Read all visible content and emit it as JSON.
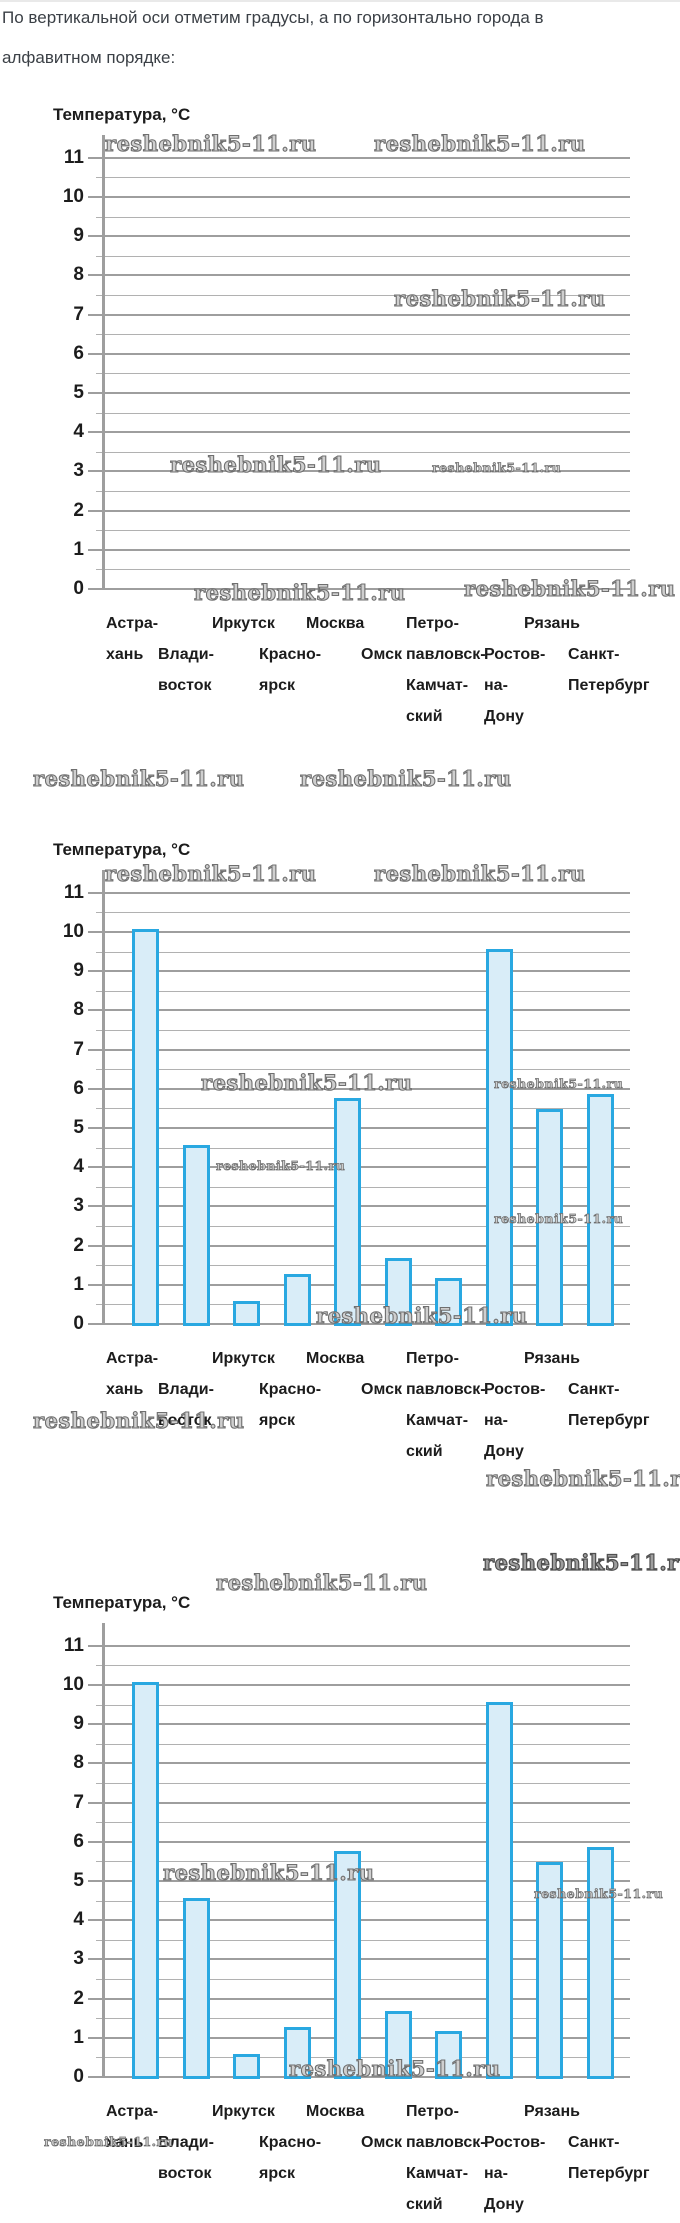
{
  "watermark": "reshebnik5-11.ru",
  "intro": {
    "line1": "По вертикальной оси отметим градусы, а по горизонтально города в",
    "line2": "алфавитном порядке:"
  },
  "axis": {
    "title": "Температура, °C",
    "y_ticks": [
      0,
      1,
      2,
      3,
      4,
      5,
      6,
      7,
      8,
      9,
      10,
      11
    ]
  },
  "city_labels": [
    {
      "lines": [
        "Астра-",
        "хань"
      ],
      "row": 0
    },
    {
      "lines": [
        "Влади-",
        "восток"
      ],
      "row": 1
    },
    {
      "lines": [
        "Иркутск"
      ],
      "row": 0
    },
    {
      "lines": [
        "Красно-",
        "ярск"
      ],
      "row": 1
    },
    {
      "lines": [
        "Москва"
      ],
      "row": 0
    },
    {
      "lines": [
        "Омск"
      ],
      "row": 1
    },
    {
      "lines": [
        "Петро-",
        "павловск-",
        "Камчат-",
        "ский"
      ],
      "row": 0
    },
    {
      "lines": [
        "Ростов-",
        "на-",
        "Дону"
      ],
      "row": 1
    },
    {
      "lines": [
        "Рязань"
      ],
      "row": 0
    },
    {
      "lines": [
        "Санкт-",
        "Петербург"
      ],
      "row": 1
    }
  ],
  "chart_data": [
    {
      "type": "bar",
      "title": "Температура, °C",
      "categories": [
        "Астрахань",
        "Владивосток",
        "Иркутск",
        "Красноярск",
        "Москва",
        "Омск",
        "Петропавловск-Камчатский",
        "Ростов-на-Дону",
        "Рязань",
        "Санкт-Петербург"
      ],
      "values": [],
      "ylim": [
        0,
        11.5
      ],
      "yticks": [
        0,
        1,
        2,
        3,
        4,
        5,
        6,
        7,
        8,
        9,
        10,
        11
      ],
      "grid": "horizontal lines every 0.5",
      "legend": "none",
      "note": "empty coordinate grid without bars"
    },
    {
      "type": "bar",
      "title": "Температура, °C",
      "categories": [
        "Астрахань",
        "Владивосток",
        "Иркутск",
        "Красноярск",
        "Москва",
        "Омск",
        "Петропавловск-Камчатский",
        "Ростов-на-Дону",
        "Рязань",
        "Санкт-Петербург"
      ],
      "values": [
        10.1,
        4.6,
        0.6,
        1.3,
        5.8,
        1.7,
        1.2,
        9.6,
        5.5,
        5.9
      ],
      "ylim": [
        0,
        11.5
      ],
      "yticks": [
        0,
        1,
        2,
        3,
        4,
        5,
        6,
        7,
        8,
        9,
        10,
        11
      ],
      "grid": "horizontal lines every 0.5",
      "legend": "none"
    },
    {
      "type": "bar",
      "title": "Температура, °C",
      "categories": [
        "Астрахань",
        "Владивосток",
        "Иркутск",
        "Красноярск",
        "Москва",
        "Омск",
        "Петропавловск-Камчатский",
        "Ростов-на-Дону",
        "Рязань",
        "Санкт-Петербург"
      ],
      "values": [
        10.1,
        4.6,
        0.6,
        1.3,
        5.8,
        1.7,
        1.2,
        9.6,
        5.5,
        5.9
      ],
      "ylim": [
        0,
        11.5
      ],
      "yticks": [
        0,
        1,
        2,
        3,
        4,
        5,
        6,
        7,
        8,
        9,
        10,
        11
      ],
      "grid": "horizontal lines every 0.5",
      "legend": "none"
    }
  ],
  "colors": {
    "bar_fill": "#d9edf8",
    "bar_border": "#29a8e1",
    "grid_major": "#9e9e9e",
    "grid_minor": "#b1b1b1",
    "axis": "#9e9e9e",
    "text": "#1c1c1c",
    "intro_text": "#3b4046",
    "watermark": "#6f6f6f"
  }
}
